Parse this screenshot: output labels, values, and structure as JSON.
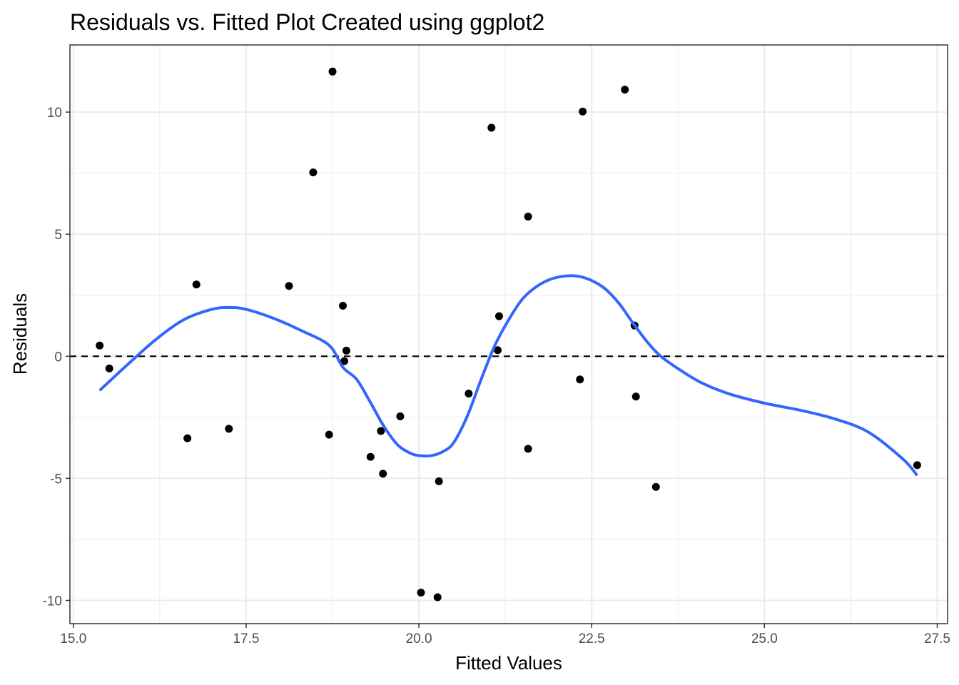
{
  "chart_data": {
    "type": "scatter",
    "title": "Residuals vs. Fitted Plot Created using ggplot2",
    "xlabel": "Fitted Values",
    "ylabel": "Residuals",
    "xlim": [
      14.95,
      27.65
    ],
    "ylim": [
      -10.95,
      12.75
    ],
    "x_ticks": [
      15.0,
      17.5,
      20.0,
      22.5,
      25.0,
      27.5
    ],
    "x_tick_labels": [
      "15.0",
      "17.5",
      "20.0",
      "22.5",
      "25.0",
      "27.5"
    ],
    "y_ticks": [
      -10,
      -5,
      0,
      5,
      10
    ],
    "y_tick_labels": [
      "-10",
      "-5",
      "0",
      "5",
      "10"
    ],
    "grid": true,
    "reference_line": {
      "y": 0,
      "style": "dashed",
      "color": "#000000"
    },
    "colors": {
      "points": "#000000",
      "smooth": "#3366ff",
      "grid": "#ebebeb",
      "panel_border": "#333333"
    },
    "points": [
      {
        "x": 15.38,
        "y": 0.44
      },
      {
        "x": 15.52,
        "y": -0.5
      },
      {
        "x": 16.65,
        "y": -3.36
      },
      {
        "x": 16.78,
        "y": 2.94
      },
      {
        "x": 17.25,
        "y": -2.97
      },
      {
        "x": 18.12,
        "y": 2.88
      },
      {
        "x": 18.47,
        "y": 7.53
      },
      {
        "x": 18.7,
        "y": -3.21
      },
      {
        "x": 18.75,
        "y": 11.66
      },
      {
        "x": 18.9,
        "y": 2.07
      },
      {
        "x": 18.92,
        "y": -0.2
      },
      {
        "x": 18.95,
        "y": 0.23
      },
      {
        "x": 19.3,
        "y": -4.12
      },
      {
        "x": 19.45,
        "y": -3.06
      },
      {
        "x": 19.48,
        "y": -4.81
      },
      {
        "x": 19.73,
        "y": -2.46
      },
      {
        "x": 20.03,
        "y": -9.68
      },
      {
        "x": 20.27,
        "y": -9.87
      },
      {
        "x": 20.29,
        "y": -5.12
      },
      {
        "x": 20.72,
        "y": -1.53
      },
      {
        "x": 21.05,
        "y": 9.36
      },
      {
        "x": 21.14,
        "y": 0.25
      },
      {
        "x": 21.16,
        "y": 1.64
      },
      {
        "x": 21.58,
        "y": 5.72
      },
      {
        "x": 21.58,
        "y": -3.79
      },
      {
        "x": 22.33,
        "y": -0.95
      },
      {
        "x": 22.37,
        "y": 10.02
      },
      {
        "x": 22.98,
        "y": 10.92
      },
      {
        "x": 23.12,
        "y": 1.26
      },
      {
        "x": 23.14,
        "y": -1.65
      },
      {
        "x": 23.43,
        "y": -5.35
      },
      {
        "x": 27.21,
        "y": -4.46
      }
    ],
    "smooth": {
      "method": "loess",
      "x": [
        15.38,
        15.8,
        16.2,
        16.6,
        17.0,
        17.25,
        17.5,
        17.9,
        18.3,
        18.7,
        18.9,
        19.1,
        19.3,
        19.5,
        19.7,
        19.9,
        20.05,
        20.2,
        20.35,
        20.5,
        20.7,
        20.9,
        21.1,
        21.3,
        21.5,
        21.7,
        21.9,
        22.1,
        22.3,
        22.5,
        22.7,
        22.9,
        23.1,
        23.3,
        23.5,
        23.8,
        24.1,
        24.5,
        25.0,
        25.5,
        26.0,
        26.5,
        27.0,
        27.21
      ],
      "y": [
        -1.4,
        -0.3,
        0.7,
        1.5,
        1.92,
        2.0,
        1.92,
        1.55,
        1.05,
        0.45,
        -0.45,
        -0.95,
        -1.9,
        -2.9,
        -3.65,
        -4.0,
        -4.08,
        -4.06,
        -3.9,
        -3.55,
        -2.45,
        -0.95,
        0.45,
        1.5,
        2.35,
        2.85,
        3.15,
        3.28,
        3.28,
        3.1,
        2.75,
        2.15,
        1.35,
        0.6,
        0.0,
        -0.6,
        -1.1,
        -1.55,
        -1.92,
        -2.2,
        -2.55,
        -3.1,
        -4.2,
        -4.88
      ]
    }
  }
}
